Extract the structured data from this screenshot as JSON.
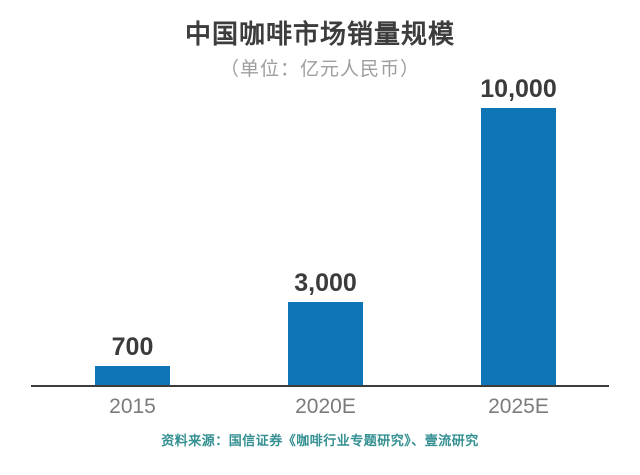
{
  "header": {
    "title": "中国咖啡市场销量规模",
    "subtitle": "（单位：亿元人民币）"
  },
  "footer": {
    "source": "资料来源：国信证券《咖啡行业专题研究》、壹流研究"
  },
  "colors": {
    "bar": "#0e75b7",
    "title_text": "#3d3d3d",
    "subtitle_text": "#9e9e9e",
    "value_label_text": "#3b3b3b",
    "axis_line": "#3c3c3c",
    "tick_label_text": "#7b7b7b",
    "source_text": "#359092",
    "background": "#ffffff"
  },
  "chart_data": {
    "type": "bar",
    "title": "中国咖啡市场销量规模",
    "subtitle": "（单位：亿元人民币）",
    "unit": "亿元人民币",
    "categories": [
      "2015",
      "2020E",
      "2025E"
    ],
    "values": [
      700,
      3000,
      10000
    ],
    "value_labels": [
      "700",
      "3,000",
      "10,000"
    ],
    "ylim": [
      0,
      10000
    ],
    "grid": false,
    "legend": "none",
    "bar_color": "#0e75b7",
    "orientation": "vertical"
  }
}
